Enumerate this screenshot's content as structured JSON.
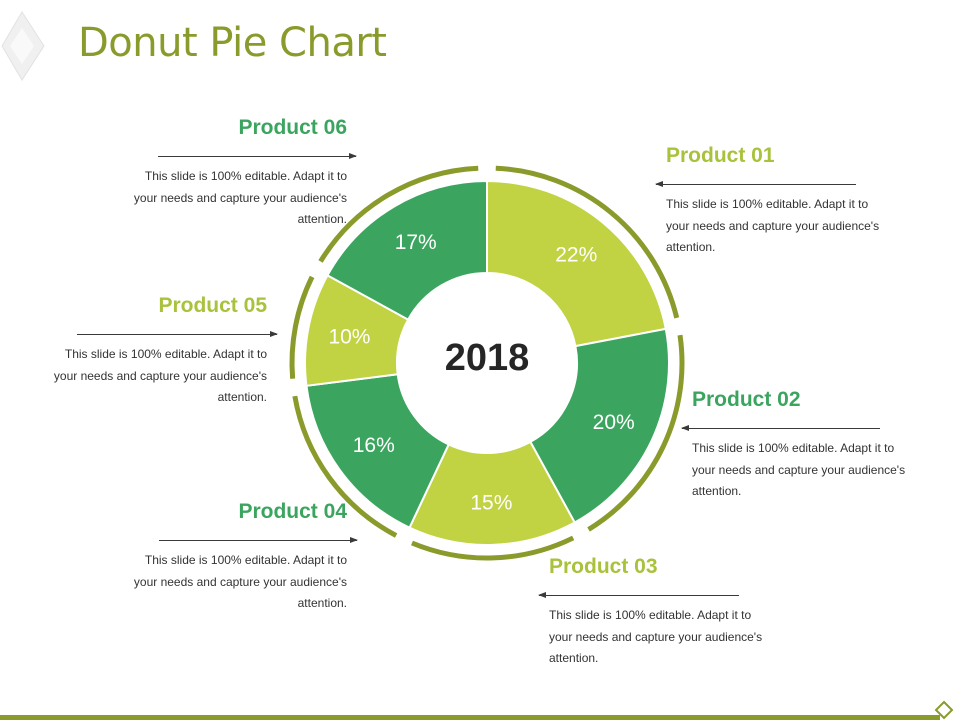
{
  "title": "Donut Pie Chart",
  "center_label": "2018",
  "colors": {
    "lime": "#c1d342",
    "green": "#3ba55f",
    "ring": "#8a9a2b",
    "title": "#8a9a2b"
  },
  "chart_data": {
    "type": "pie",
    "variant": "donut",
    "categories": [
      "Product 01",
      "Product 02",
      "Product 03",
      "Product 04",
      "Product 05",
      "Product 06"
    ],
    "values": [
      22,
      20,
      15,
      16,
      10,
      17
    ],
    "labels": [
      "22%",
      "20%",
      "15%",
      "16%",
      "10%",
      "17%"
    ],
    "colors": [
      "#c1d342",
      "#3ba55f",
      "#c1d342",
      "#3ba55f",
      "#c1d342",
      "#3ba55f"
    ],
    "center_text": "2018"
  },
  "callouts": [
    {
      "title": "Product 01",
      "text": [
        "This slide is 100% editable. Adapt it to",
        "your needs and capture your audience's",
        "attention."
      ],
      "color": "#a8c23c"
    },
    {
      "title": "Product 02",
      "text": [
        "This slide is 100% editable. Adapt it to",
        "your needs and capture your audience's",
        "attention."
      ],
      "color": "#3ba55f"
    },
    {
      "title": "Product 03",
      "text": [
        "This slide is 100% editable. Adapt it to",
        "your needs and capture your audience's",
        "attention."
      ],
      "color": "#a8c23c"
    },
    {
      "title": "Product 04",
      "text": [
        "This slide is 100% editable. Adapt it to",
        "your needs and capture your audience's",
        "attention."
      ],
      "color": "#3ba55f"
    },
    {
      "title": "Product 05",
      "text": [
        "This slide is 100% editable. Adapt it to",
        "your needs and capture your audience's",
        "attention."
      ],
      "color": "#a8c23c"
    },
    {
      "title": "Product 06",
      "text": [
        "This slide is 100% editable. Adapt it to",
        "your needs and capture your audience's",
        "attention."
      ],
      "color": "#3ba55f"
    }
  ]
}
